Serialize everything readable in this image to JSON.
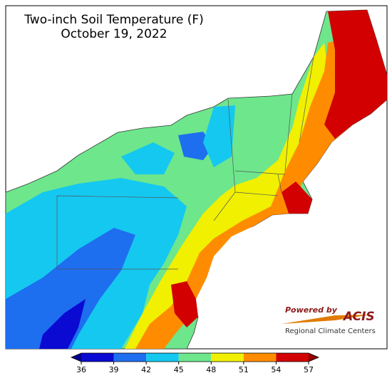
{
  "title": "Two-inch Soil Temperature (F)",
  "date": "October 19, 2022",
  "legend": {
    "ticks": [
      36,
      39,
      42,
      45,
      48,
      51,
      54,
      57
    ],
    "colors": [
      "#0a0ad2",
      "#1e6ef0",
      "#14c8f0",
      "#6ee68c",
      "#f0f000",
      "#ff8c00",
      "#d20000"
    ],
    "under_color": "#00008c",
    "over_color": "#8c0000"
  },
  "credit": {
    "line1": "Powered by",
    "brand": "ACIS",
    "line2": "Regional Climate Centers"
  }
}
